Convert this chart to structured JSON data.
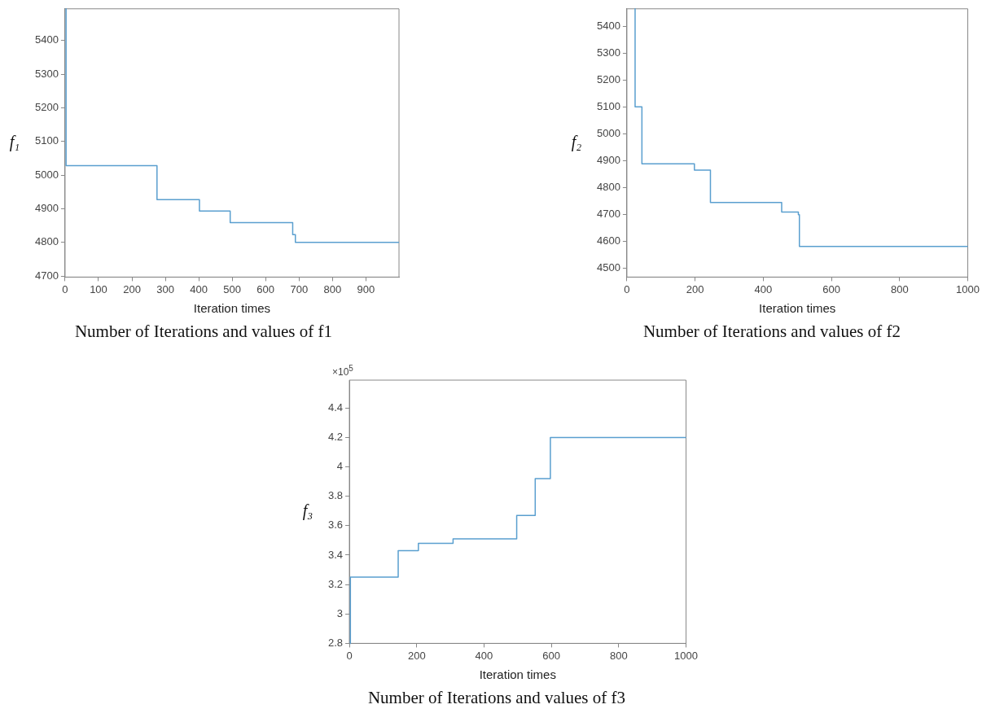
{
  "chart_data": [
    {
      "type": "step",
      "title": "Number of Iterations and values of f1",
      "xlabel": "Iteration times",
      "ylabel": "f₁",
      "x": [
        2,
        3,
        275,
        402,
        494,
        681,
        689,
        999
      ],
      "series": [
        {
          "color": "#5a9fcf",
          "values": [
            5494,
            5028,
            4927,
            4893,
            4859,
            4823,
            4800,
            4800
          ]
        }
      ],
      "xlim": [
        0,
        999
      ],
      "xticks": [
        0,
        100,
        200,
        300,
        400,
        500,
        600,
        700,
        800,
        900
      ],
      "ylim": [
        4697,
        5494
      ],
      "yticks": [
        4700,
        4800,
        4900,
        5000,
        5100,
        5200,
        5300,
        5400
      ],
      "grid": false,
      "legend": false
    },
    {
      "type": "step",
      "title": "Number of Iterations and values of f2",
      "xlabel": "Iteration times",
      "ylabel": "f₂",
      "x": [
        23,
        24,
        44,
        198,
        245,
        454,
        503,
        506,
        1000
      ],
      "series": [
        {
          "color": "#5a9fcf",
          "values": [
            5465,
            5100,
            4888,
            4864,
            4744,
            4708,
            4698,
            4580,
            4580
          ]
        }
      ],
      "xlim": [
        0,
        1000
      ],
      "xticks": [
        0,
        200,
        400,
        600,
        800,
        1000
      ],
      "ylim": [
        4466,
        5465
      ],
      "yticks": [
        4500,
        4600,
        4700,
        4800,
        4900,
        5000,
        5100,
        5200,
        5300,
        5400
      ],
      "grid": false,
      "legend": false
    },
    {
      "type": "step",
      "title": "Number of Iterations and values of f3",
      "xlabel": "Iteration times",
      "ylabel": "f₃",
      "annotations": [
        "×10$^{5}$"
      ],
      "x": [
        2,
        3,
        145,
        205,
        308,
        497,
        552,
        597,
        1000
      ],
      "series": [
        {
          "color": "#5a9fcf",
          "values": [
            2.8,
            3.25,
            3.43,
            3.48,
            3.51,
            3.67,
            3.92,
            4.2,
            4.2
          ]
        }
      ],
      "xlim": [
        0,
        1000
      ],
      "xticks": [
        0,
        200,
        400,
        600,
        800,
        1000
      ],
      "ylim": [
        2.8,
        4.59
      ],
      "yticks": [
        2.8,
        3,
        3.2,
        3.4,
        3.6,
        3.8,
        4,
        4.2,
        4.4
      ],
      "grid": false,
      "legend": false
    }
  ]
}
